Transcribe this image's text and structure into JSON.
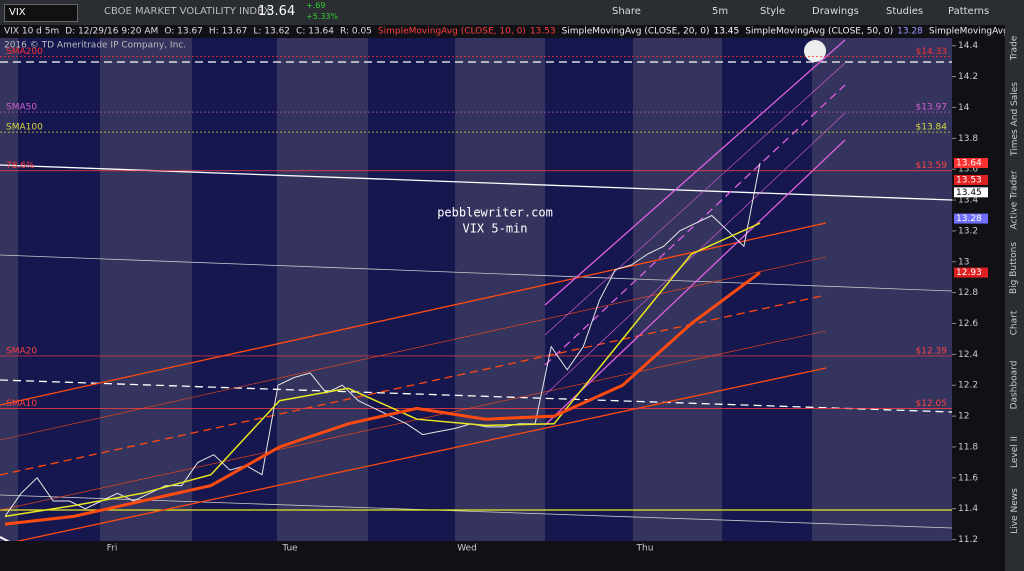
{
  "toolbar": {
    "symbol": "VIX",
    "description": "CBOE MARKET VOLATILITY INDEX",
    "last": "13.64",
    "change": "+.69",
    "change_pct": "+5.33%",
    "buttons": [
      "Share",
      "5m",
      "Style",
      "Drawings",
      "Studies",
      "Patterns"
    ]
  },
  "sidebar": {
    "tabs": [
      "Trade",
      "Times And Sales",
      "Active Trader",
      "Big Buttons",
      "Chart",
      "Dashboard",
      "Level II",
      "Live News"
    ]
  },
  "chart_data": {
    "type": "line",
    "info": [
      "VIX 10 d 5m",
      "D: 12/29/16 9:20 AM",
      "O: 13.67",
      "H: 13.67",
      "L: 13.62",
      "C: 13.64",
      "R: 0.05"
    ],
    "studies": [
      {
        "name": "SimpleMovingAvg (CLOSE, 10, 0)",
        "value": "13.53",
        "color": "#ff4040"
      },
      {
        "name": "SimpleMovingAvg (CLOSE, 20, 0)",
        "value": "13.45",
        "color": "#ffffff"
      },
      {
        "name": "SimpleMovingAvg (CLOSE, 50, 0)",
        "value": "13.28",
        "color": "#9a9aff"
      },
      {
        "name": "SimpleMovingAvg (CLOSE ...",
        "color": "#e8e820"
      }
    ],
    "copyright": "2016 © TD Ameritrade IP Company, Inc.",
    "annotations": [
      "pebblewriter.com",
      "VIX 5-min"
    ],
    "x_labels": [
      "Fri",
      "Tue",
      "Wed",
      "Thu"
    ],
    "ylim": [
      11.1,
      14.45
    ],
    "yticks": [
      14.4,
      14.2,
      14,
      13.8,
      13.6,
      13.4,
      13.2,
      13,
      12.8,
      12.6,
      12.4,
      12.2,
      12,
      11.8,
      11.6,
      11.4,
      11.2
    ],
    "series": [
      {
        "name": "VIX",
        "color": "#e8e8e8",
        "values": [
          11.35,
          11.5,
          11.6,
          11.45,
          11.45,
          11.4,
          11.45,
          11.5,
          11.45,
          11.5,
          11.55,
          11.55,
          11.7,
          11.75,
          11.65,
          11.68,
          11.62,
          12.2,
          12.25,
          12.28,
          12.15,
          12.2,
          12.1,
          12.05,
          12.0,
          11.95,
          11.88,
          11.9,
          11.92,
          11.95,
          11.93,
          11.93,
          11.95,
          11.95,
          12.45,
          12.3,
          12.45,
          12.75,
          12.95,
          12.98,
          13.05,
          13.1,
          13.2,
          13.25,
          13.3,
          13.2,
          13.1,
          13.64
        ]
      },
      {
        "name": "SMA yellow",
        "color": "#e8e820",
        "values": [
          11.35,
          11.42,
          11.5,
          11.62,
          12.1,
          12.18,
          11.98,
          11.94,
          11.95,
          12.5,
          13.05,
          13.25
        ]
      },
      {
        "name": "SMA orange",
        "color": "#ff4a10",
        "values": [
          11.3,
          11.35,
          11.45,
          11.55,
          11.8,
          11.95,
          12.05,
          11.98,
          12.0,
          12.2,
          12.6,
          12.93
        ]
      }
    ],
    "levels": [
      {
        "label": "SMA200",
        "value": 14.33,
        "value_label": "$14.33",
        "color": "#ff3030"
      },
      {
        "label": "SMA50",
        "value": 13.97,
        "value_label": "$13.97",
        "color": "#d060d0"
      },
      {
        "label": "SMA100",
        "value": 13.84,
        "value_label": "$13.84",
        "color": "#d8d840"
      },
      {
        "label": "78.6%",
        "value": 13.59,
        "value_label": "$13.59",
        "color": "#ff4040"
      },
      {
        "label": "SMA20",
        "value": 12.39,
        "value_label": "$12.39",
        "color": "#ff4040"
      },
      {
        "label": "SMA10",
        "value": 12.05,
        "value_label": "$12.05",
        "color": "#ff4040"
      }
    ],
    "price_tags": [
      {
        "value": 13.64,
        "color": "#ff3030"
      },
      {
        "value": 13.53,
        "color": "#e02020"
      },
      {
        "value": 13.45,
        "color": "#ffffff"
      },
      {
        "value": 13.28,
        "color": "#7070ff"
      },
      {
        "value": 12.93,
        "color": "#e02020"
      }
    ]
  }
}
